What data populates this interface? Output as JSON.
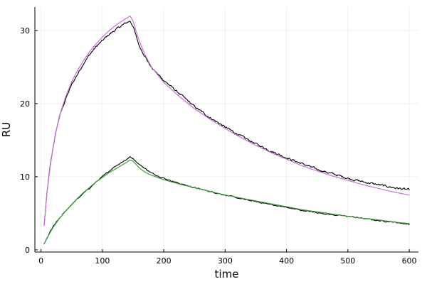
{
  "chart_data": {
    "type": "line",
    "title": "",
    "xlabel": "time",
    "ylabel": "RU",
    "xlim": [
      -10,
      615
    ],
    "ylim": [
      -0.3,
      33.2
    ],
    "xticks": [
      0,
      100,
      200,
      300,
      400,
      500,
      600
    ],
    "yticks": [
      0,
      10,
      20,
      30
    ],
    "grid": true,
    "legend": "none",
    "series": [
      {
        "role": "data-high",
        "color": "#000000",
        "noise": 0.22,
        "points": [
          [
            5,
            3.3
          ],
          [
            10,
            8.0
          ],
          [
            15,
            11.5
          ],
          [
            20,
            14.2
          ],
          [
            25,
            16.4
          ],
          [
            30,
            18.2
          ],
          [
            40,
            20.6
          ],
          [
            50,
            22.6
          ],
          [
            60,
            24.1
          ],
          [
            70,
            25.6
          ],
          [
            80,
            26.8
          ],
          [
            90,
            27.8
          ],
          [
            100,
            28.6
          ],
          [
            110,
            29.4
          ],
          [
            120,
            30.0
          ],
          [
            130,
            30.6
          ],
          [
            140,
            31.1
          ],
          [
            145,
            31.3
          ],
          [
            150,
            30.6
          ],
          [
            155,
            29.2
          ],
          [
            160,
            27.9
          ],
          [
            170,
            26.4
          ],
          [
            180,
            24.9
          ],
          [
            200,
            23.2
          ],
          [
            225,
            21.4
          ],
          [
            250,
            19.6
          ],
          [
            275,
            18.1
          ],
          [
            300,
            16.8
          ],
          [
            325,
            15.6
          ],
          [
            350,
            14.5
          ],
          [
            375,
            13.5
          ],
          [
            400,
            12.6
          ],
          [
            425,
            11.8
          ],
          [
            450,
            11.0
          ],
          [
            475,
            10.4
          ],
          [
            500,
            9.8
          ],
          [
            525,
            9.3
          ],
          [
            550,
            8.9
          ],
          [
            575,
            8.5
          ],
          [
            600,
            8.2
          ]
        ]
      },
      {
        "role": "fit-high",
        "color": "#c870d8",
        "noise": 0,
        "points": [
          [
            5,
            3.3
          ],
          [
            10,
            8.0
          ],
          [
            15,
            11.4
          ],
          [
            20,
            14.2
          ],
          [
            25,
            16.4
          ],
          [
            30,
            18.3
          ],
          [
            40,
            20.9
          ],
          [
            50,
            23.0
          ],
          [
            60,
            24.6
          ],
          [
            70,
            26.0
          ],
          [
            80,
            27.2
          ],
          [
            90,
            28.2
          ],
          [
            100,
            29.1
          ],
          [
            110,
            29.9
          ],
          [
            120,
            30.6
          ],
          [
            130,
            31.2
          ],
          [
            140,
            31.7
          ],
          [
            145,
            32.0
          ],
          [
            150,
            31.3
          ],
          [
            155,
            29.9
          ],
          [
            160,
            28.6
          ],
          [
            170,
            26.6
          ],
          [
            180,
            25.0
          ],
          [
            200,
            22.9
          ],
          [
            225,
            21.0
          ],
          [
            250,
            19.3
          ],
          [
            275,
            17.9
          ],
          [
            300,
            16.6
          ],
          [
            325,
            15.4
          ],
          [
            350,
            14.3
          ],
          [
            375,
            13.3
          ],
          [
            400,
            12.4
          ],
          [
            425,
            11.5
          ],
          [
            450,
            10.8
          ],
          [
            475,
            10.1
          ],
          [
            500,
            9.5
          ],
          [
            525,
            8.9
          ],
          [
            550,
            8.4
          ],
          [
            575,
            7.9
          ],
          [
            600,
            7.5
          ]
        ]
      },
      {
        "role": "data-low",
        "color": "#000000",
        "noise": 0.12,
        "points": [
          [
            5,
            0.8
          ],
          [
            10,
            1.6
          ],
          [
            15,
            2.5
          ],
          [
            20,
            3.2
          ],
          [
            30,
            4.3
          ],
          [
            40,
            5.3
          ],
          [
            50,
            6.2
          ],
          [
            60,
            7.0
          ],
          [
            70,
            7.8
          ],
          [
            80,
            8.5
          ],
          [
            90,
            9.3
          ],
          [
            100,
            10.0
          ],
          [
            110,
            10.7
          ],
          [
            120,
            11.4
          ],
          [
            130,
            11.9
          ],
          [
            140,
            12.4
          ],
          [
            145,
            12.7
          ],
          [
            150,
            12.5
          ],
          [
            155,
            12.1
          ],
          [
            160,
            11.7
          ],
          [
            170,
            11.1
          ],
          [
            180,
            10.5
          ],
          [
            200,
            9.8
          ],
          [
            225,
            9.1
          ],
          [
            250,
            8.5
          ],
          [
            275,
            8.0
          ],
          [
            300,
            7.5
          ],
          [
            325,
            7.0
          ],
          [
            350,
            6.6
          ],
          [
            375,
            6.2
          ],
          [
            400,
            5.8
          ],
          [
            425,
            5.4
          ],
          [
            450,
            5.1
          ],
          [
            475,
            4.8
          ],
          [
            500,
            4.6
          ],
          [
            525,
            4.3
          ],
          [
            550,
            4.0
          ],
          [
            575,
            3.8
          ],
          [
            600,
            3.5
          ]
        ]
      },
      {
        "role": "fit-low",
        "color": "#3a9e3a",
        "noise": 0,
        "points": [
          [
            5,
            0.8
          ],
          [
            10,
            1.6
          ],
          [
            15,
            2.4
          ],
          [
            20,
            3.1
          ],
          [
            30,
            4.3
          ],
          [
            40,
            5.3
          ],
          [
            50,
            6.2
          ],
          [
            60,
            7.1
          ],
          [
            70,
            7.9
          ],
          [
            80,
            8.6
          ],
          [
            90,
            9.3
          ],
          [
            100,
            9.9
          ],
          [
            110,
            10.5
          ],
          [
            120,
            11.0
          ],
          [
            130,
            11.5
          ],
          [
            140,
            12.0
          ],
          [
            145,
            12.3
          ],
          [
            150,
            12.1
          ],
          [
            155,
            11.7
          ],
          [
            160,
            11.2
          ],
          [
            170,
            10.6
          ],
          [
            180,
            10.2
          ],
          [
            200,
            9.6
          ],
          [
            225,
            9.0
          ],
          [
            250,
            8.5
          ],
          [
            275,
            8.0
          ],
          [
            300,
            7.5
          ],
          [
            325,
            7.1
          ],
          [
            350,
            6.7
          ],
          [
            375,
            6.3
          ],
          [
            400,
            5.9
          ],
          [
            425,
            5.5
          ],
          [
            450,
            5.2
          ],
          [
            475,
            4.9
          ],
          [
            500,
            4.6
          ],
          [
            525,
            4.3
          ],
          [
            550,
            4.1
          ],
          [
            575,
            3.8
          ],
          [
            600,
            3.6
          ]
        ]
      }
    ]
  }
}
